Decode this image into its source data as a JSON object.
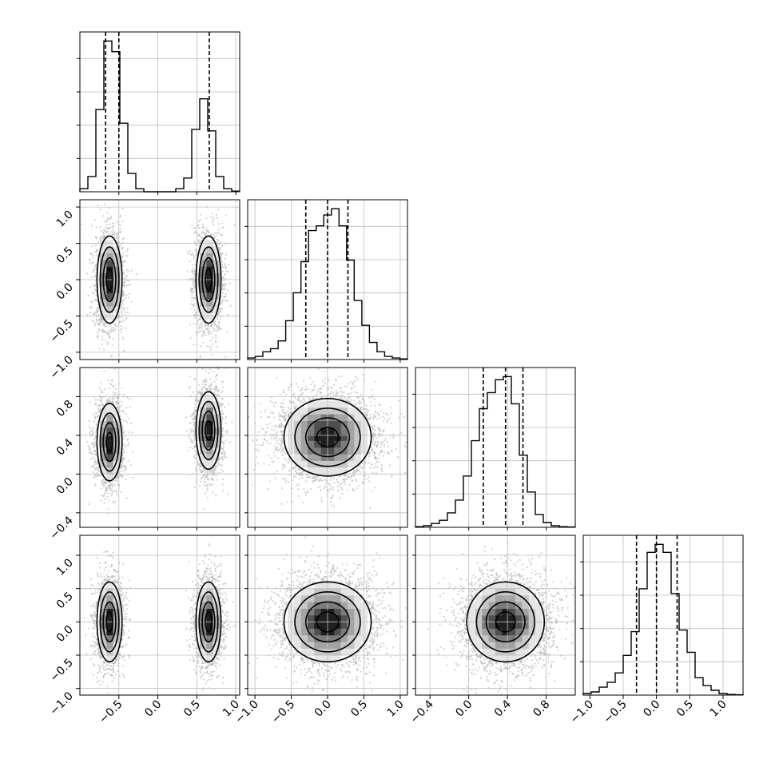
{
  "chart_data": {
    "type": "corner",
    "style": {
      "hist_color": "#000000",
      "point_color": "#b4b4b4",
      "grid_color": "#bdbdbd",
      "density_colors": [
        "#ffffff",
        "#e5e5e5",
        "#c6c6c6",
        "#a3a3a3",
        "#7b7b7b",
        "#4f4f4f",
        "#1f1f1f"
      ]
    },
    "parameters": [
      {
        "range": [
          -1.0,
          1.05
        ],
        "ticks": [
          -0.5,
          0.0,
          0.5,
          1.0
        ],
        "tick_labels": [
          "−0.5",
          "0.0",
          "0.5",
          "1.0"
        ],
        "hist_counts": [
          0.1,
          0.5,
          2.7,
          4.95,
          4.6,
          2.25,
          0.6,
          0.1,
          0,
          0,
          0,
          0,
          0.1,
          0.45,
          2.05,
          3.05,
          2.0,
          0.5,
          0.1,
          0.02
        ],
        "quantiles": [
          -0.67,
          -0.5,
          0.66
        ],
        "modes": [
          {
            "mean": -0.62,
            "sd": 0.08
          },
          {
            "mean": 0.65,
            "sd": 0.08
          }
        ]
      },
      {
        "range": [
          -1.1,
          1.1
        ],
        "ticks": [
          -1.0,
          -0.5,
          0.0,
          0.5,
          1.0
        ],
        "tick_labels": [
          "−1.0",
          "−0.5",
          "0.0",
          "0.5",
          "1.0"
        ],
        "hist_counts": [
          0.05,
          0.1,
          0.25,
          0.35,
          0.6,
          1.25,
          2.15,
          3.15,
          4.15,
          4.3,
          4.65,
          4.85,
          4.3,
          3.2,
          1.9,
          1.1,
          0.55,
          0.25,
          0.1,
          0.05,
          0.02
        ],
        "quantiles": [
          -0.3,
          0.0,
          0.28
        ],
        "sd": 0.3
      },
      {
        "range": [
          -0.55,
          1.1
        ],
        "ticks": [
          -0.4,
          0.0,
          0.4,
          0.8
        ],
        "tick_labels": [
          "−0.4",
          "0.0",
          "0.4",
          "0.8"
        ],
        "hist_counts": [
          0.02,
          0.05,
          0.12,
          0.22,
          0.45,
          0.85,
          1.6,
          2.7,
          3.7,
          4.2,
          4.6,
          4.7,
          3.85,
          2.25,
          1.1,
          0.4,
          0.15,
          0.05,
          0.02,
          0.01
        ],
        "quantiles": [
          0.15,
          0.38,
          0.56
        ],
        "mean": 0.38,
        "sd": 0.2
      },
      {
        "range": [
          -1.1,
          1.3
        ],
        "ticks": [
          -1.0,
          -0.5,
          0.0,
          0.5,
          1.0
        ],
        "tick_labels": [
          "−1.0",
          "−0.5",
          "0.0",
          "0.5",
          "1.0"
        ],
        "hist_counts": [
          0.05,
          0.1,
          0.25,
          0.4,
          0.7,
          1.25,
          2.0,
          3.35,
          4.5,
          4.75,
          4.5,
          3.2,
          2.05,
          1.35,
          0.55,
          0.3,
          0.15,
          0.05,
          0.02,
          0.01
        ],
        "quantiles": [
          -0.3,
          0.0,
          0.31
        ],
        "sd": 0.3
      }
    ],
    "panels": [
      {
        "row": 1,
        "col": 0,
        "kind": "bimodal",
        "y_mean": 0.0,
        "y_sd": 0.3
      },
      {
        "row": 2,
        "col": 0,
        "kind": "bimodal",
        "y_means": [
          0.33,
          0.45
        ],
        "y_sd": 0.2
      },
      {
        "row": 2,
        "col": 1,
        "kind": "unimodal",
        "x_mean": 0.0,
        "x_sd": 0.3,
        "y_mean": 0.38,
        "y_sd": 0.2
      },
      {
        "row": 3,
        "col": 0,
        "kind": "bimodal",
        "y_mean": 0.0,
        "y_sd": 0.3
      },
      {
        "row": 3,
        "col": 1,
        "kind": "unimodal",
        "x_mean": 0.0,
        "x_sd": 0.3,
        "y_mean": 0.0,
        "y_sd": 0.3
      },
      {
        "row": 3,
        "col": 2,
        "kind": "unimodal",
        "x_mean": 0.38,
        "x_sd": 0.2,
        "y_mean": 0.0,
        "y_sd": 0.3
      }
    ],
    "contour_levels": [
      0.5,
      1.0,
      1.5,
      2.0
    ],
    "legend": "none",
    "grid": true
  }
}
